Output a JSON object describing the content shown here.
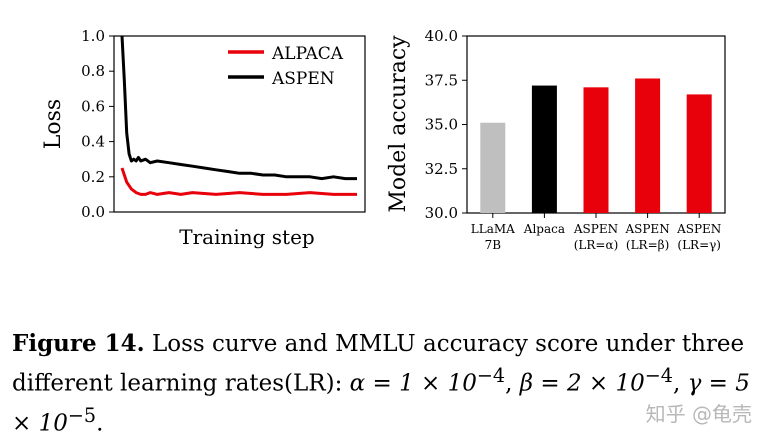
{
  "chart_data": [
    {
      "type": "line",
      "title": "",
      "xlabel": "Training step",
      "ylabel": "Loss",
      "ylim": [
        0,
        1.0
      ],
      "yticks": [
        "0.0",
        "0.2",
        "0.4",
        "0.6",
        "0.8",
        "1.0"
      ],
      "legend_position": "top-right",
      "series": [
        {
          "name": "ALPACA",
          "color": "#e8000b",
          "x": [
            0,
            2,
            4,
            6,
            8,
            10,
            12,
            15,
            20,
            25,
            30,
            40,
            50,
            60,
            70,
            80,
            90,
            100
          ],
          "y": [
            0.25,
            0.17,
            0.13,
            0.11,
            0.1,
            0.1,
            0.11,
            0.1,
            0.11,
            0.1,
            0.11,
            0.1,
            0.11,
            0.1,
            0.1,
            0.11,
            0.1,
            0.1
          ]
        },
        {
          "name": "ASPEN",
          "color": "#000000",
          "x": [
            0,
            1,
            2,
            3,
            4,
            5,
            6,
            7,
            8,
            10,
            12,
            15,
            20,
            25,
            30,
            35,
            40,
            45,
            50,
            55,
            60,
            65,
            70,
            75,
            80,
            85,
            90,
            95,
            100
          ],
          "y": [
            1.0,
            0.75,
            0.45,
            0.33,
            0.29,
            0.3,
            0.29,
            0.31,
            0.29,
            0.3,
            0.28,
            0.29,
            0.28,
            0.27,
            0.26,
            0.25,
            0.24,
            0.23,
            0.22,
            0.22,
            0.21,
            0.21,
            0.2,
            0.2,
            0.2,
            0.19,
            0.2,
            0.19,
            0.19
          ]
        }
      ]
    },
    {
      "type": "bar",
      "title": "",
      "xlabel": "",
      "ylabel": "Model accuracy",
      "ylim": [
        30.0,
        40.0
      ],
      "yticks": [
        "30.0",
        "32.5",
        "35.0",
        "37.5",
        "40.0"
      ],
      "categories": [
        [
          "LLaMA",
          "7B"
        ],
        [
          "Alpaca"
        ],
        [
          "ASPEN",
          "(LR=α)"
        ],
        [
          "ASPEN",
          "(LR=β)"
        ],
        [
          "ASPEN",
          "(LR=γ)"
        ]
      ],
      "values": [
        35.1,
        37.2,
        37.1,
        37.6,
        36.7
      ],
      "colors": [
        "#bfbfbf",
        "#000000",
        "#e8000b",
        "#e8000b",
        "#e8000b"
      ]
    }
  ],
  "caption": {
    "label": "Figure 14.",
    "text": " Loss curve and MMLU accuracy score under three different learning rates(LR): ",
    "alpha": "α = 1 × 10",
    "alpha_exp": "−4",
    "beta": "β = 2 × 10",
    "beta_exp": "−4",
    "gamma": "γ = 5 × 10",
    "gamma_exp": "−5"
  },
  "watermark": "知乎 @龟壳"
}
